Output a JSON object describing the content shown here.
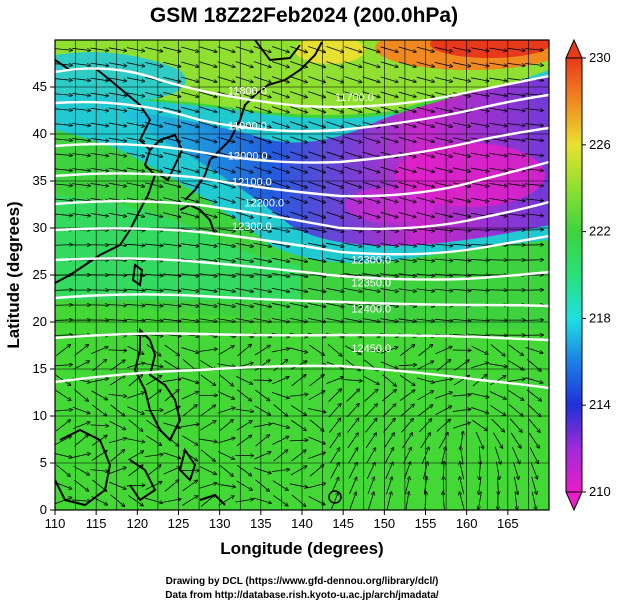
{
  "title": "GSM 18Z22Feb2024 (200.0hPa)",
  "xlabel": "Longitude (degrees)",
  "ylabel": "Latitude  (degrees)",
  "credits": [
    "Drawing by DCL (https://www.gfd-dennou.org/library/dcl/)",
    "Data from http://database.rish.kyoto-u.ac.jp/arch/jmadata/"
  ],
  "colors": {
    "background_field": "#3ed33e",
    "jet_low": "#1e2bd0",
    "jet_core": "#e020c8",
    "high_temp": "#e83a1a",
    "coastline": "#000000",
    "contour": "#ffffff"
  },
  "chart_data": {
    "type": "heatmap",
    "field": "temperature (K) with geopotential height contours and streamlines",
    "xlim": [
      110,
      170
    ],
    "ylim": [
      0,
      50
    ],
    "xticks": [
      "110",
      "115",
      "120",
      "125",
      "130",
      "135",
      "140",
      "145",
      "150",
      "155",
      "160",
      "165"
    ],
    "yticks": [
      "0",
      "5",
      "10",
      "15",
      "20",
      "25",
      "30",
      "35",
      "40",
      "45"
    ],
    "colorbar": {
      "range": [
        210,
        230
      ],
      "ticks": [
        "210",
        "214",
        "218",
        "222",
        "226",
        "230"
      ],
      "stops": [
        {
          "value": 210,
          "color": "#e81ec8"
        },
        {
          "value": 212,
          "color": "#a02ad8"
        },
        {
          "value": 214,
          "color": "#2030d8"
        },
        {
          "value": 216,
          "color": "#1c7fe8"
        },
        {
          "value": 218,
          "color": "#1ee0e0"
        },
        {
          "value": 220,
          "color": "#2ae07a"
        },
        {
          "value": 222,
          "color": "#3ed33e"
        },
        {
          "value": 224,
          "color": "#8fe030"
        },
        {
          "value": 226,
          "color": "#e8e030"
        },
        {
          "value": 228,
          "color": "#f08a20"
        },
        {
          "value": 230,
          "color": "#e83a1a"
        }
      ]
    },
    "contour_labels": [
      {
        "text": "11800.0",
        "lon": 131,
        "lat": 44.2
      },
      {
        "text": "11900.0",
        "lon": 131,
        "lat": 40.5
      },
      {
        "text": "12000.0",
        "lon": 131,
        "lat": 37.3
      },
      {
        "text": "12100.0",
        "lon": 131.5,
        "lat": 34.5
      },
      {
        "text": "12200.0",
        "lon": 133,
        "lat": 32.3
      },
      {
        "text": "12300.0",
        "lon": 131.5,
        "lat": 29.8
      },
      {
        "text": "12300.0",
        "lon": 146,
        "lat": 26.2
      },
      {
        "text": "12350.0",
        "lon": 146,
        "lat": 23.8
      },
      {
        "text": "12400.0",
        "lon": 146,
        "lat": 21.0
      },
      {
        "text": "12450.0",
        "lon": 146,
        "lat": 16.8
      },
      {
        "text": "11700.0",
        "lon": 144,
        "lat": 43.5
      }
    ]
  }
}
